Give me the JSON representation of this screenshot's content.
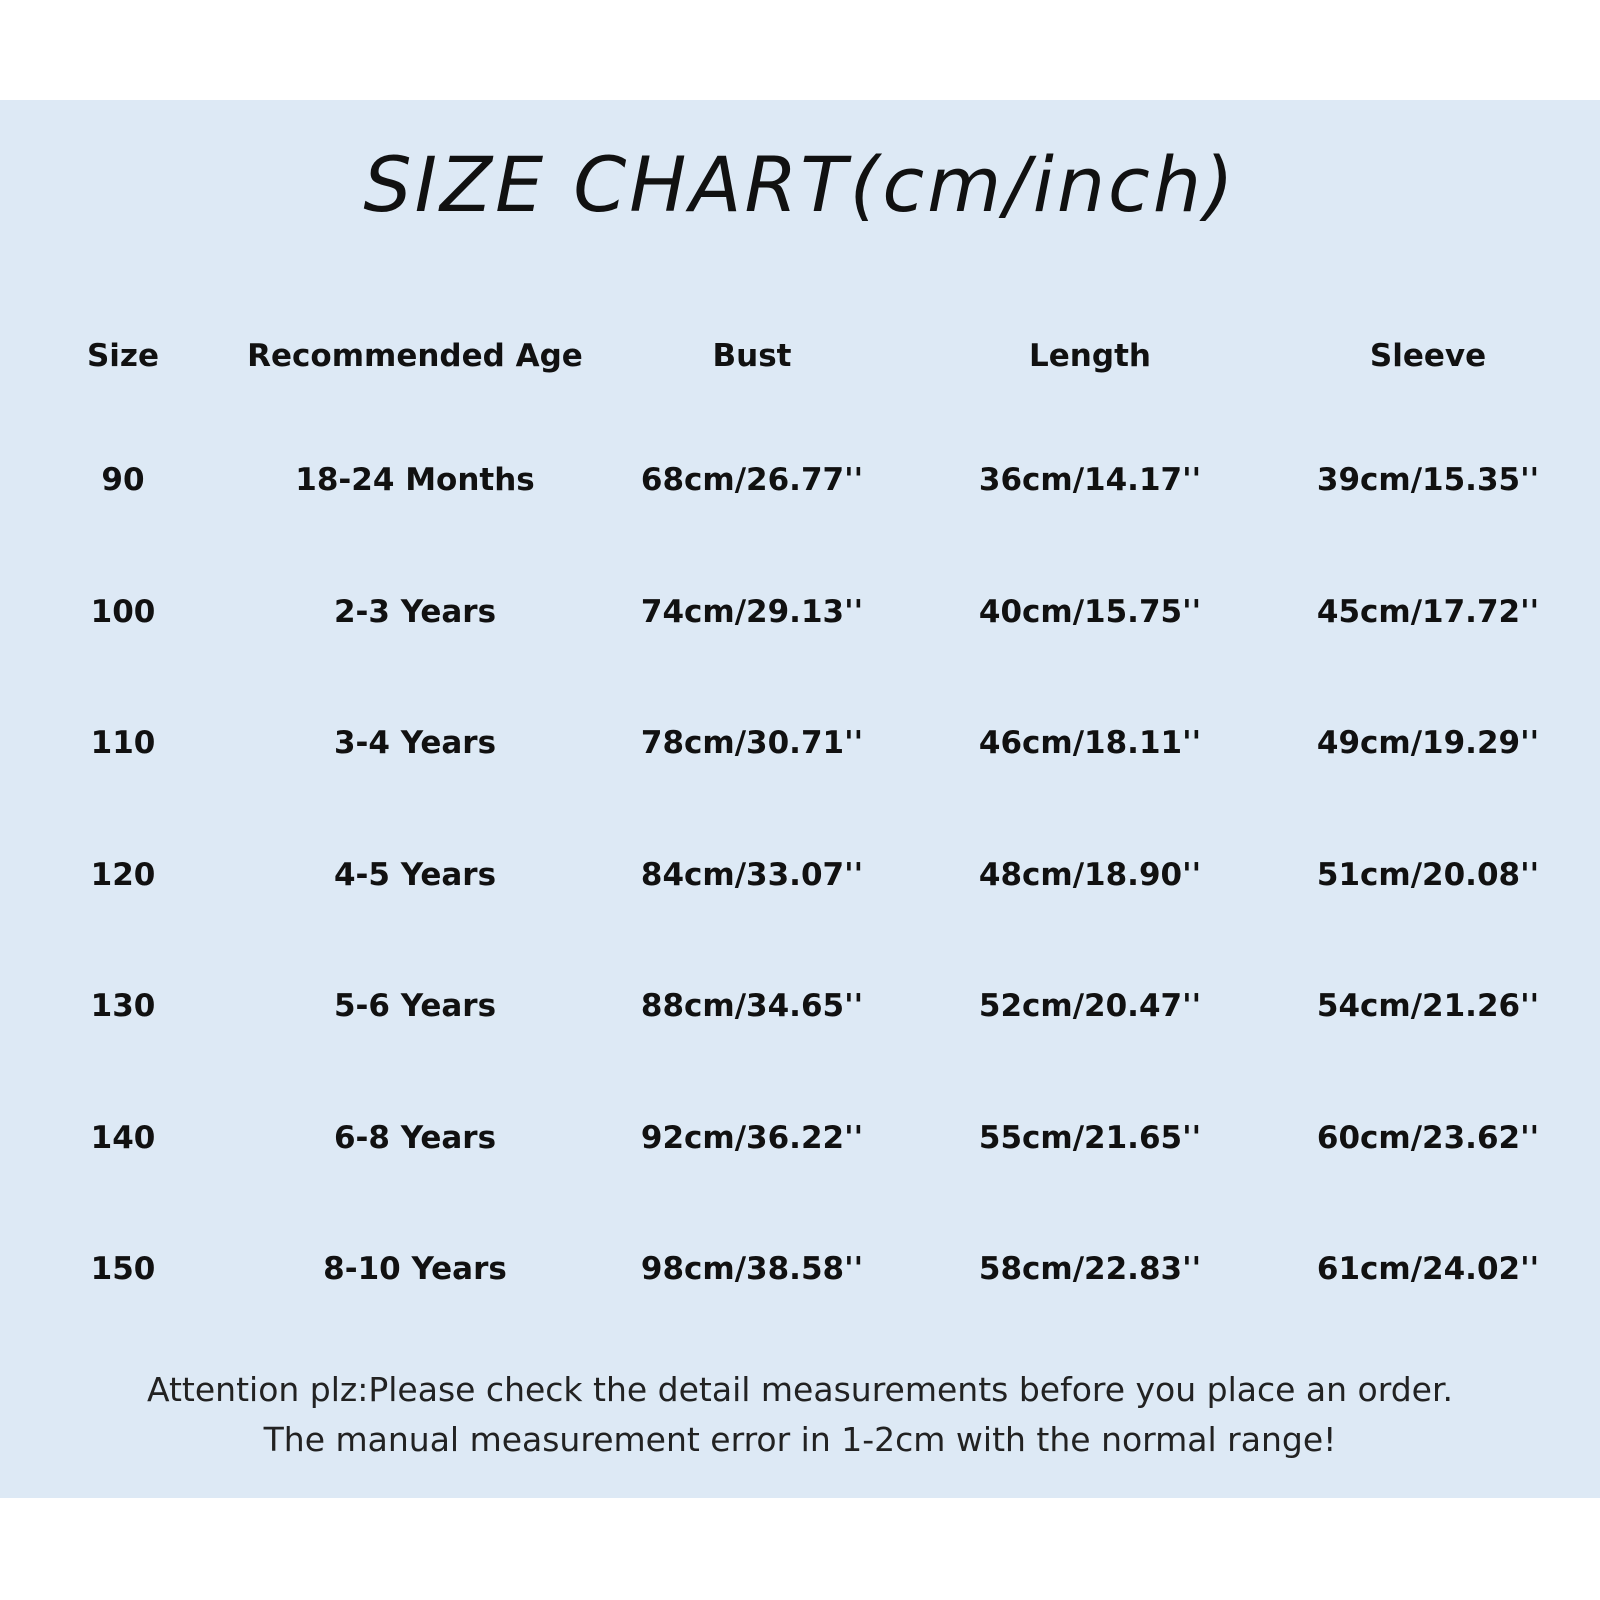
{
  "title": "SIZE CHART(cm/inch)",
  "table": {
    "headers": [
      "Size",
      "Recommended Age",
      "Bust",
      "Length",
      "Sleeve"
    ],
    "rows": [
      [
        "90",
        "18-24 Months",
        "68cm/26.77''",
        "36cm/14.17''",
        "39cm/15.35''"
      ],
      [
        "100",
        "2-3 Years",
        "74cm/29.13''",
        "40cm/15.75''",
        "45cm/17.72''"
      ],
      [
        "110",
        "3-4 Years",
        "78cm/30.71''",
        "46cm/18.11''",
        "49cm/19.29''"
      ],
      [
        "120",
        "4-5 Years",
        "84cm/33.07''",
        "48cm/18.90''",
        "51cm/20.08''"
      ],
      [
        "130",
        "5-6 Years",
        "88cm/34.65''",
        "52cm/20.47''",
        "54cm/21.26''"
      ],
      [
        "140",
        "6-8 Years",
        "92cm/36.22''",
        "55cm/21.65''",
        "60cm/23.62''"
      ],
      [
        "150",
        "8-10 Years",
        "98cm/38.58''",
        "58cm/22.83''",
        "61cm/24.02''"
      ]
    ]
  },
  "notes": [
    "Attention plz:Please check the detail measurements before you place an order.",
    "The manual measurement error in 1-2cm with the normal range!"
  ],
  "colors": {
    "panel_background": "#dde9f5",
    "text": "#111111"
  }
}
